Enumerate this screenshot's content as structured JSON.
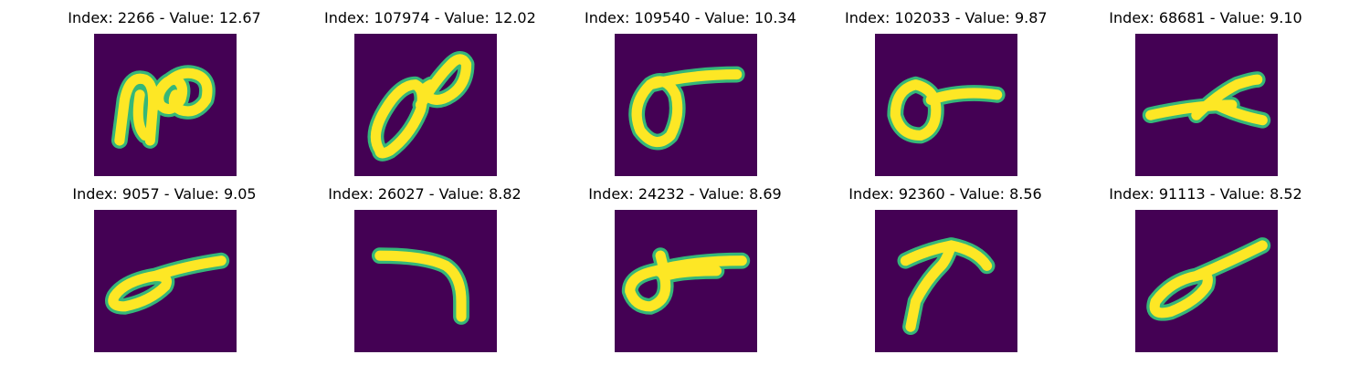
{
  "colors": {
    "background": "#440154",
    "stroke_core": "#fde725",
    "stroke_edge": "#35b779"
  },
  "panels": [
    {
      "title": "Index: 2266 - Value: 12.67"
    },
    {
      "title": "Index: 107974 - Value: 12.02"
    },
    {
      "title": "Index: 109540 - Value: 10.34"
    },
    {
      "title": "Index: 102033 - Value: 9.87"
    },
    {
      "title": "Index: 68681 - Value: 9.10"
    },
    {
      "title": "Index: 9057 - Value: 9.05"
    },
    {
      "title": "Index: 26027 - Value: 8.82"
    },
    {
      "title": "Index: 24232 - Value: 8.69"
    },
    {
      "title": "Index: 92360 - Value: 8.56"
    },
    {
      "title": "Index: 91113 - Value: 8.52"
    }
  ]
}
